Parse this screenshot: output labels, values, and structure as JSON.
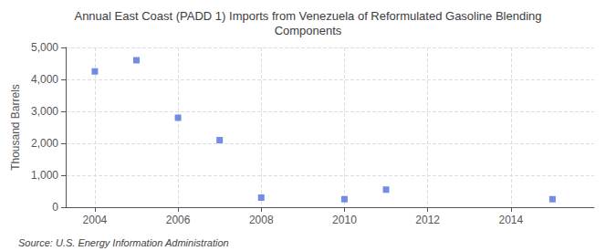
{
  "chart_data": {
    "type": "scatter",
    "title": "Annual East Coast (PADD 1) Imports from Venezuela of Reformulated Gasoline Blending\nComponents",
    "ylabel": "Thousand Barrels",
    "annotations": [
      "Source: U.S. Energy Information Administration"
    ],
    "x": [
      2004,
      2005,
      2006,
      2007,
      2008,
      2010,
      2011,
      2015
    ],
    "values": [
      4250,
      4600,
      2800,
      2100,
      300,
      250,
      550,
      250
    ],
    "marker": "square",
    "xlim": [
      2003.3,
      2016.0
    ],
    "xticks": [
      2004,
      2006,
      2008,
      2010,
      2012,
      2014
    ],
    "ylim": [
      0,
      5000
    ],
    "yticks": [
      0,
      {
        "value": 1000,
        "label": "1,000"
      },
      {
        "value": 2000,
        "label": "2,000"
      },
      {
        "value": 3000,
        "label": "3,000"
      },
      {
        "value": 4000,
        "label": "4,000"
      },
      {
        "value": 5000,
        "label": "5,000"
      }
    ],
    "grid": true
  }
}
